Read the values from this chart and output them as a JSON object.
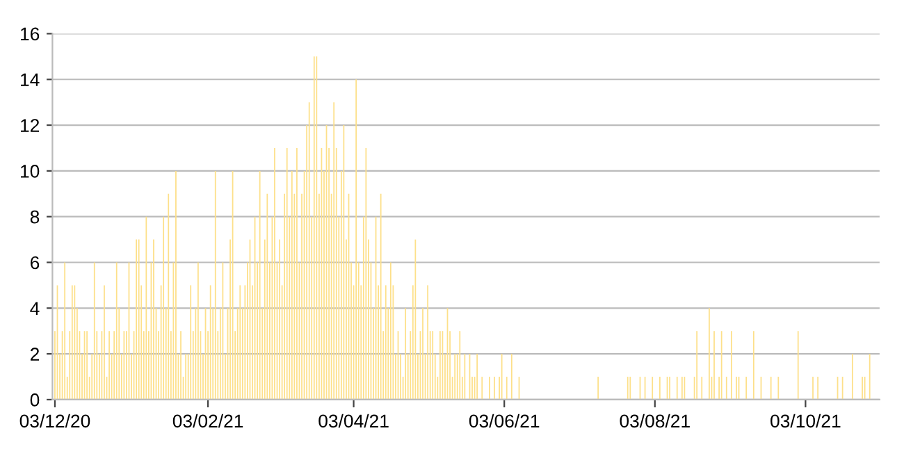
{
  "chart_data": {
    "type": "bar",
    "color": "#fde08a",
    "grid": "y",
    "x": [
      "2020-12-03",
      "2020-12-04",
      "2020-12-05",
      "2020-12-06",
      "2020-12-07",
      "2020-12-08",
      "2020-12-09",
      "2020-12-10",
      "2020-12-11",
      "2020-12-12",
      "2020-12-13",
      "2020-12-14",
      "2020-12-15",
      "2020-12-16",
      "2020-12-17",
      "2020-12-18",
      "2020-12-19",
      "2020-12-20",
      "2020-12-21",
      "2020-12-22",
      "2020-12-23",
      "2020-12-24",
      "2020-12-25",
      "2020-12-26",
      "2020-12-27",
      "2020-12-28",
      "2020-12-29",
      "2020-12-30",
      "2020-12-31",
      "2021-01-01",
      "2021-01-02",
      "2021-01-03",
      "2021-01-04",
      "2021-01-05",
      "2021-01-06",
      "2021-01-07",
      "2021-01-08",
      "2021-01-09",
      "2021-01-10",
      "2021-01-11",
      "2021-01-12",
      "2021-01-13",
      "2021-01-14",
      "2021-01-15",
      "2021-01-16",
      "2021-01-17",
      "2021-01-18",
      "2021-01-19",
      "2021-01-20",
      "2021-01-21",
      "2021-01-22",
      "2021-01-23",
      "2021-01-24",
      "2021-01-25",
      "2021-01-26",
      "2021-01-27",
      "2021-01-28",
      "2021-01-29",
      "2021-01-30",
      "2021-01-31",
      "2021-02-01",
      "2021-02-02",
      "2021-02-03",
      "2021-02-04",
      "2021-02-05",
      "2021-02-06",
      "2021-02-07",
      "2021-02-08",
      "2021-02-09",
      "2021-02-10",
      "2021-02-11",
      "2021-02-12",
      "2021-02-13",
      "2021-02-14",
      "2021-02-15",
      "2021-02-16",
      "2021-02-17",
      "2021-02-18",
      "2021-02-19",
      "2021-02-20",
      "2021-02-21",
      "2021-02-22",
      "2021-02-23",
      "2021-02-24",
      "2021-02-25",
      "2021-02-26",
      "2021-02-27",
      "2021-02-28",
      "2021-03-01",
      "2021-03-02",
      "2021-03-03",
      "2021-03-04",
      "2021-03-05",
      "2021-03-06",
      "2021-03-07",
      "2021-03-08",
      "2021-03-09",
      "2021-03-10",
      "2021-03-11",
      "2021-03-12",
      "2021-03-13",
      "2021-03-14",
      "2021-03-15",
      "2021-03-16",
      "2021-03-17",
      "2021-03-18",
      "2021-03-19",
      "2021-03-20",
      "2021-03-21",
      "2021-03-22",
      "2021-03-23",
      "2021-03-24",
      "2021-03-25",
      "2021-03-26",
      "2021-03-27",
      "2021-03-28",
      "2021-03-29",
      "2021-03-30",
      "2021-03-31",
      "2021-04-01",
      "2021-04-02",
      "2021-04-03",
      "2021-04-04",
      "2021-04-05",
      "2021-04-06",
      "2021-04-07",
      "2021-04-08",
      "2021-04-09",
      "2021-04-10",
      "2021-04-11",
      "2021-04-12",
      "2021-04-13",
      "2021-04-14",
      "2021-04-15",
      "2021-04-16",
      "2021-04-17",
      "2021-04-18",
      "2021-04-19",
      "2021-04-20",
      "2021-04-21",
      "2021-04-22",
      "2021-04-23",
      "2021-04-24",
      "2021-04-25",
      "2021-04-26",
      "2021-04-27",
      "2021-04-28",
      "2021-04-29",
      "2021-04-30",
      "2021-05-01",
      "2021-05-02",
      "2021-05-03",
      "2021-05-04",
      "2021-05-05",
      "2021-05-06",
      "2021-05-07",
      "2021-05-08",
      "2021-05-09",
      "2021-05-10",
      "2021-05-11",
      "2021-05-12",
      "2021-05-13",
      "2021-05-14",
      "2021-05-15",
      "2021-05-16",
      "2021-05-17",
      "2021-05-18",
      "2021-05-20",
      "2021-05-21",
      "2021-05-22",
      "2021-05-23",
      "2021-05-25",
      "2021-05-28",
      "2021-05-30",
      "2021-06-01",
      "2021-06-02",
      "2021-06-04",
      "2021-06-06",
      "2021-06-09",
      "2021-07-11",
      "2021-07-23",
      "2021-07-24",
      "2021-07-28",
      "2021-07-30",
      "2021-08-02",
      "2021-08-05",
      "2021-08-08",
      "2021-08-09",
      "2021-08-12",
      "2021-08-14",
      "2021-08-15",
      "2021-08-19",
      "2021-08-20",
      "2021-08-22",
      "2021-08-25",
      "2021-08-26",
      "2021-08-27",
      "2021-08-29",
      "2021-08-30",
      "2021-09-01",
      "2021-09-03",
      "2021-09-05",
      "2021-09-06",
      "2021-09-09",
      "2021-09-12",
      "2021-09-15",
      "2021-09-19",
      "2021-09-22",
      "2021-09-30",
      "2021-10-06",
      "2021-10-08",
      "2021-10-16",
      "2021-10-18",
      "2021-10-22",
      "2021-10-26",
      "2021-10-27",
      "2021-10-29"
    ],
    "values": [
      3,
      5,
      2,
      3,
      6,
      1,
      3,
      5,
      5,
      4,
      3,
      2,
      3,
      3,
      1,
      2,
      6,
      3,
      2,
      3,
      5,
      1,
      3,
      2,
      3,
      6,
      4,
      2,
      3,
      3,
      6,
      2,
      3,
      7,
      7,
      5,
      3,
      8,
      3,
      6,
      7,
      4,
      3,
      5,
      8,
      4,
      9,
      3,
      6,
      10,
      2,
      3,
      1,
      2,
      2,
      5,
      3,
      4,
      6,
      3,
      2,
      4,
      3,
      5,
      4,
      10,
      3,
      4,
      6,
      2,
      4,
      7,
      10,
      3,
      4,
      5,
      4,
      5,
      6,
      7,
      5,
      8,
      6,
      10,
      4,
      7,
      9,
      6,
      8,
      11,
      6,
      7,
      5,
      9,
      11,
      8,
      10,
      9,
      11,
      6,
      9,
      10,
      12,
      13,
      8,
      15,
      15,
      9,
      11,
      10,
      12,
      11,
      9,
      13,
      11,
      8,
      10,
      12,
      7,
      9,
      6,
      5,
      14,
      6,
      5,
      8,
      11,
      7,
      6,
      4,
      8,
      5,
      9,
      3,
      5,
      4,
      6,
      5,
      2,
      3,
      2,
      1,
      4,
      2,
      3,
      5,
      7,
      2,
      3,
      4,
      2,
      5,
      3,
      3,
      2,
      1,
      3,
      3,
      2,
      4,
      3,
      1,
      2,
      2,
      3,
      1,
      2,
      2,
      1,
      1,
      2,
      1,
      1,
      1,
      1,
      2,
      1,
      2,
      1,
      1,
      1,
      1,
      1,
      1,
      1,
      1,
      1,
      1,
      1,
      1,
      1,
      1,
      3,
      1,
      4,
      1,
      3,
      1,
      3,
      1,
      3,
      1,
      1,
      1,
      3,
      1,
      1,
      1,
      3,
      1,
      1,
      1,
      1,
      2,
      1,
      1,
      2
    ],
    "xlim": [
      "2020-12-02",
      "2021-11-02"
    ],
    "xticks": [
      {
        "value": "2020-12-03",
        "label": "03/12/20"
      },
      {
        "value": "2021-02-03",
        "label": "03/02/21"
      },
      {
        "value": "2021-04-03",
        "label": "03/04/21"
      },
      {
        "value": "2021-06-03",
        "label": "03/06/21"
      },
      {
        "value": "2021-08-03",
        "label": "03/08/21"
      },
      {
        "value": "2021-10-03",
        "label": "03/10/21"
      }
    ],
    "ylim": [
      0,
      16
    ],
    "yticks": [
      0,
      2,
      4,
      6,
      8,
      10,
      12,
      14,
      16
    ]
  }
}
